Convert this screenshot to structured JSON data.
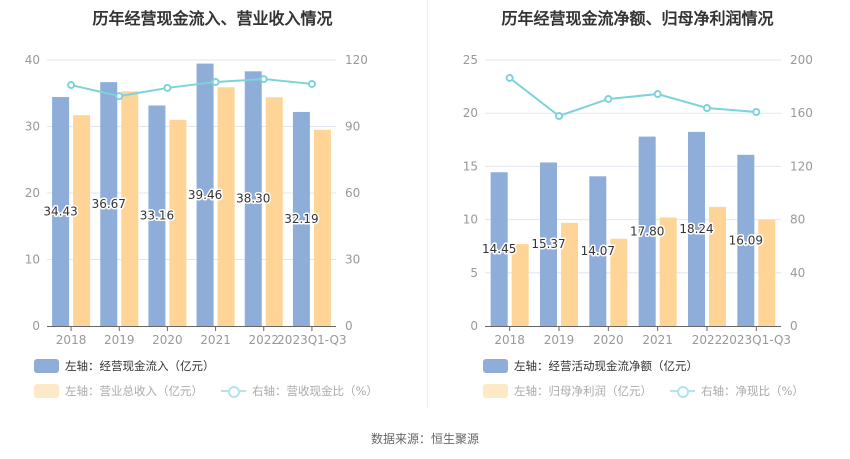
{
  "source": "数据来源：恒生聚源",
  "colors": {
    "bar1": "#8eadd9",
    "bar2": "#fed597",
    "line": "#7dd3d9",
    "grid": "#e0e6f1",
    "axis": "#666666"
  },
  "chart_data": [
    {
      "type": "bar",
      "title": "历年经营现金流入、营业收入情况",
      "categories": [
        "2018",
        "2019",
        "2020",
        "2021",
        "2022",
        "2023Q1-Q3"
      ],
      "y_left": {
        "range": [
          0,
          40
        ],
        "ticks": [
          "0",
          "10",
          "20",
          "30",
          "40"
        ]
      },
      "y_right": {
        "range": [
          0,
          120
        ],
        "ticks": [
          "0",
          "30",
          "60",
          "90",
          "120"
        ]
      },
      "grid": true,
      "legend_position": "bottom-left",
      "series": [
        {
          "name": "左轴：经营现金流入（亿元）",
          "kind": "bar",
          "axis": "left",
          "values": [
            34.43,
            36.67,
            33.16,
            39.46,
            38.3,
            32.19
          ],
          "labels": [
            "34.43",
            "36.67",
            "33.16",
            "39.46",
            "38.30",
            "32.19"
          ]
        },
        {
          "name": "左轴：营业总收入（亿元）",
          "kind": "bar",
          "axis": "left",
          "values": [
            31.7,
            35.3,
            31.0,
            35.9,
            34.4,
            29.5
          ]
        },
        {
          "name": "右轴：营收现金比（%）",
          "kind": "line",
          "axis": "right",
          "values": [
            108.7,
            103.7,
            107.4,
            110.1,
            111.4,
            109.2
          ]
        }
      ]
    },
    {
      "type": "bar",
      "title": "历年经营现金流净额、归母净利润情况",
      "categories": [
        "2018",
        "2019",
        "2020",
        "2021",
        "2022",
        "2023Q1-Q3"
      ],
      "y_left": {
        "range": [
          0,
          25
        ],
        "ticks": [
          "0",
          "5",
          "10",
          "15",
          "20",
          "25"
        ]
      },
      "y_right": {
        "range": [
          0,
          200
        ],
        "ticks": [
          "0",
          "40",
          "80",
          "120",
          "160",
          "200"
        ]
      },
      "grid": true,
      "legend_position": "bottom-left",
      "series": [
        {
          "name": "左轴：经营活动现金流净额（亿元）",
          "kind": "bar",
          "axis": "left",
          "values": [
            14.45,
            15.37,
            14.07,
            17.8,
            18.24,
            16.09
          ],
          "labels": [
            "14.45",
            "15.37",
            "14.07",
            "17.80",
            "18.24",
            "16.09"
          ]
        },
        {
          "name": "左轴：归母净利润（亿元）",
          "kind": "bar",
          "axis": "left",
          "values": [
            7.7,
            9.7,
            8.2,
            10.2,
            11.2,
            10.0
          ]
        },
        {
          "name": "右轴：净现比（%）",
          "kind": "line",
          "axis": "right",
          "values": [
            186.5,
            157.9,
            170.7,
            174.4,
            163.9,
            160.9
          ]
        }
      ]
    }
  ]
}
